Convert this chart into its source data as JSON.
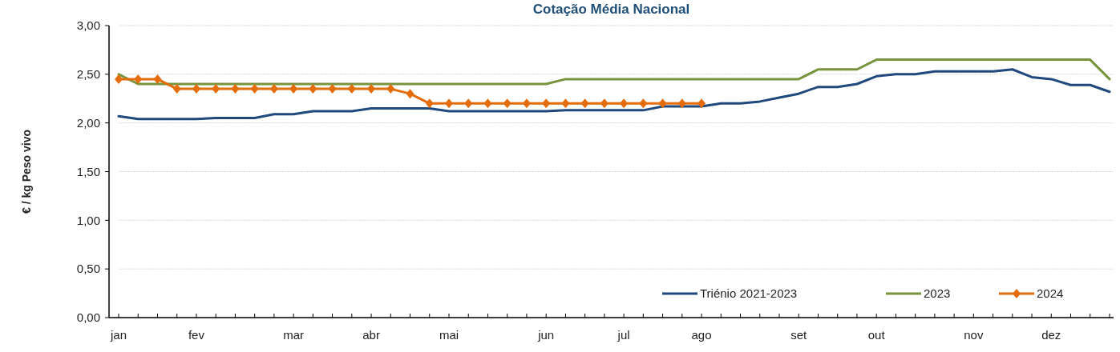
{
  "chart_data": {
    "type": "line",
    "title": "Cotação Média Nacional",
    "ylabel": "€ / kg Peso vivo",
    "categories": [
      "jan",
      null,
      null,
      null,
      "fev",
      null,
      null,
      null,
      null,
      "mar",
      null,
      null,
      null,
      "abr",
      null,
      null,
      null,
      "mai",
      null,
      null,
      null,
      null,
      "jun",
      null,
      null,
      null,
      "jul",
      null,
      null,
      null,
      "ago",
      null,
      null,
      null,
      null,
      "set",
      null,
      null,
      null,
      "out",
      null,
      null,
      null,
      null,
      "nov",
      null,
      null,
      null,
      "dez",
      null,
      null,
      null
    ],
    "series": [
      {
        "name": "Triénio 2021-2023",
        "color": "#1f497d",
        "marker": "none",
        "values": [
          2.07,
          2.04,
          2.04,
          2.04,
          2.04,
          2.05,
          2.05,
          2.05,
          2.09,
          2.09,
          2.12,
          2.12,
          2.12,
          2.15,
          2.15,
          2.15,
          2.15,
          2.12,
          2.12,
          2.12,
          2.12,
          2.12,
          2.12,
          2.13,
          2.13,
          2.13,
          2.13,
          2.13,
          2.17,
          2.17,
          2.17,
          2.2,
          2.2,
          2.22,
          2.26,
          2.3,
          2.37,
          2.37,
          2.4,
          2.48,
          2.5,
          2.5,
          2.53,
          2.53,
          2.53,
          2.53,
          2.55,
          2.47,
          2.45,
          2.39,
          2.39,
          2.32
        ]
      },
      {
        "name": "2023",
        "color": "#77933c",
        "marker": "none",
        "values": [
          2.5,
          2.4,
          2.4,
          2.4,
          2.4,
          2.4,
          2.4,
          2.4,
          2.4,
          2.4,
          2.4,
          2.4,
          2.4,
          2.4,
          2.4,
          2.4,
          2.4,
          2.4,
          2.4,
          2.4,
          2.4,
          2.4,
          2.4,
          2.45,
          2.45,
          2.45,
          2.45,
          2.45,
          2.45,
          2.45,
          2.45,
          2.45,
          2.45,
          2.45,
          2.45,
          2.45,
          2.55,
          2.55,
          2.55,
          2.65,
          2.65,
          2.65,
          2.65,
          2.65,
          2.65,
          2.65,
          2.65,
          2.65,
          2.65,
          2.65,
          2.65,
          2.45
        ]
      },
      {
        "name": "2024",
        "color": "#e46c0a",
        "marker": "diamond",
        "values": [
          2.45,
          2.45,
          2.45,
          2.35,
          2.35,
          2.35,
          2.35,
          2.35,
          2.35,
          2.35,
          2.35,
          2.35,
          2.35,
          2.35,
          2.35,
          2.3,
          2.2,
          2.2,
          2.2,
          2.2,
          2.2,
          2.2,
          2.2,
          2.2,
          2.2,
          2.2,
          2.2,
          2.2,
          2.2,
          2.2,
          2.2,
          null,
          null,
          null,
          null,
          null,
          null,
          null,
          null,
          null,
          null,
          null,
          null,
          null,
          null,
          null,
          null,
          null,
          null,
          null,
          null,
          null
        ]
      }
    ],
    "ylim": [
      0,
      3
    ],
    "yticks": [
      {
        "value": 0,
        "label": "0,00"
      },
      {
        "value": 0.5,
        "label": "0,50"
      },
      {
        "value": 1,
        "label": "1,00"
      },
      {
        "value": 1.5,
        "label": "1,50"
      },
      {
        "value": 2,
        "label": "2,00"
      },
      {
        "value": 2.5,
        "label": "2,50"
      },
      {
        "value": 3,
        "label": "3,00"
      }
    ],
    "grid": "y",
    "legend": "bottom right"
  }
}
